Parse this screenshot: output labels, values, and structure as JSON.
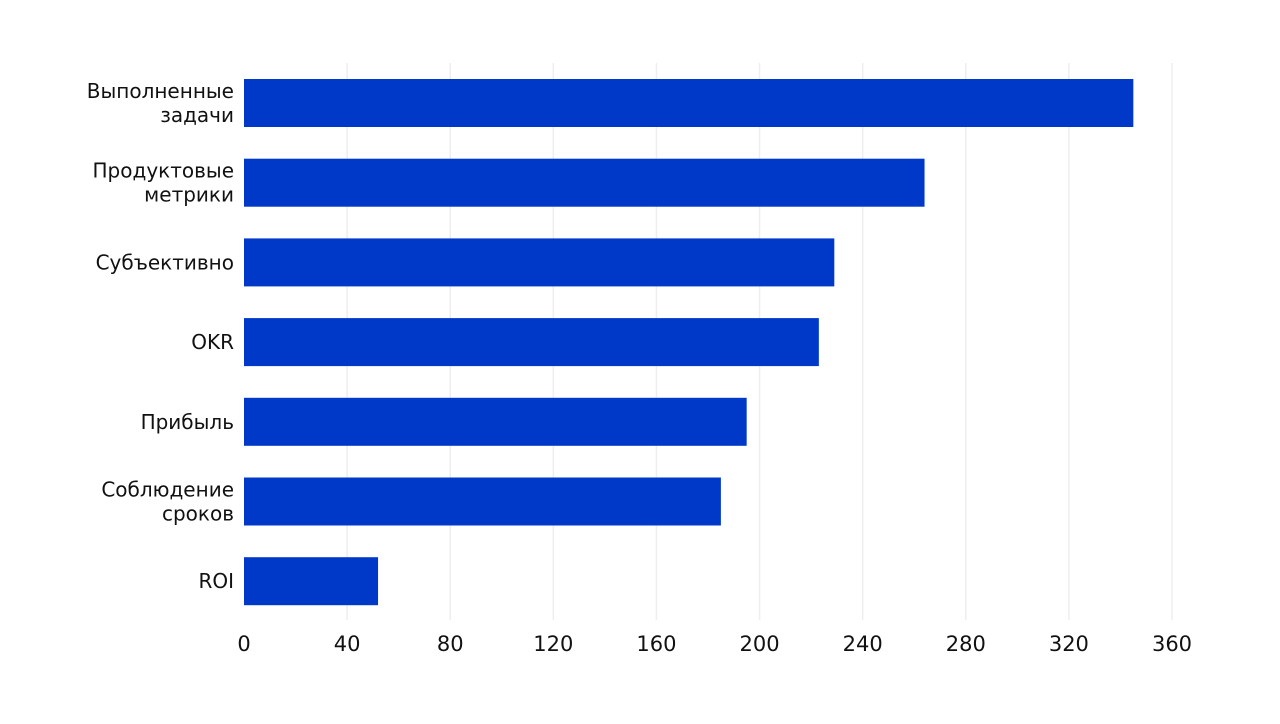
{
  "chart_data": {
    "type": "bar",
    "orientation": "horizontal",
    "categories": [
      [
        "Выполненные",
        "задачи"
      ],
      [
        "Продуктовые",
        "метрики"
      ],
      [
        "Субъективно"
      ],
      [
        "OKR"
      ],
      [
        "Прибыль"
      ],
      [
        "Соблюдение",
        "сроков"
      ],
      [
        "ROI"
      ]
    ],
    "values": [
      345,
      264,
      229,
      223,
      195,
      185,
      52
    ],
    "xlim": [
      0,
      360
    ],
    "xticks": [
      "0",
      "40",
      "80",
      "120",
      "160",
      "200",
      "240",
      "280",
      "320",
      "360"
    ],
    "grid": "vertical",
    "legend": "none",
    "colors": {
      "bar": "#0038C8",
      "grid": "#EEEEEE",
      "text": "#111111"
    }
  }
}
